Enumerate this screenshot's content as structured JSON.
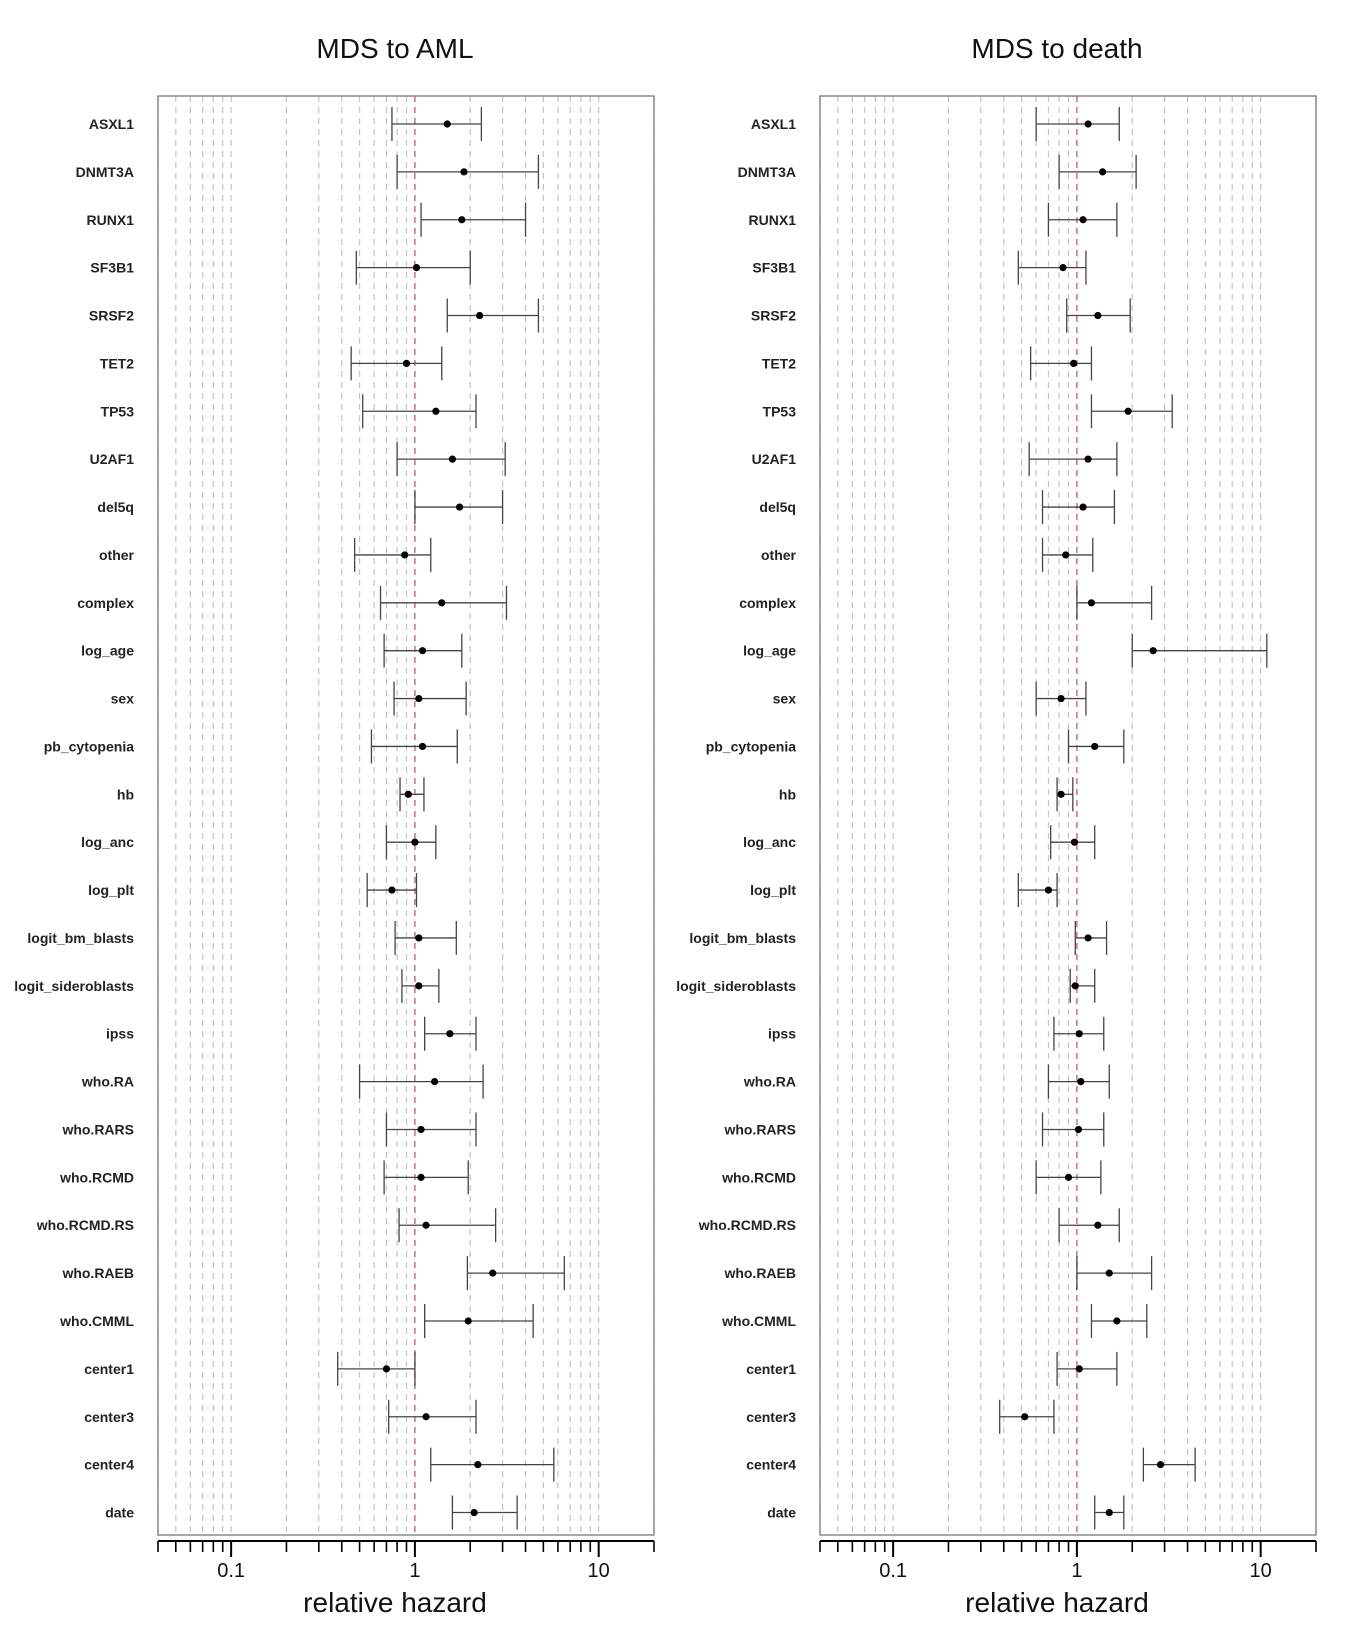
{
  "chart_data": [
    {
      "type": "forest",
      "title": "MDS to AML",
      "xlabel": "relative hazard",
      "xscale": "log",
      "xlim": [
        0.04,
        20
      ],
      "xticks": [
        0.1,
        1,
        10
      ],
      "xtick_labels": [
        "0.1",
        "1",
        "10"
      ],
      "reference_line": 1,
      "grid": "dashed vertical at log minor ticks",
      "variables": [
        "ASXL1",
        "DNMT3A",
        "RUNX1",
        "SF3B1",
        "SRSF2",
        "TET2",
        "TP53",
        "U2AF1",
        "del5q",
        "other",
        "complex",
        "log_age",
        "sex",
        "pb_cytopenia",
        "hb",
        "log_anc",
        "log_plt",
        "logit_bm_blasts",
        "logit_sideroblasts",
        "ipss",
        "who.RA",
        "who.RARS",
        "who.RCMD",
        "who.RCMD.RS",
        "who.RAEB",
        "who.CMML",
        "center1",
        "center3",
        "center4",
        "date"
      ],
      "estimates": [
        1.5,
        1.85,
        1.8,
        1.02,
        2.25,
        0.9,
        1.3,
        1.6,
        1.75,
        0.88,
        1.4,
        1.1,
        1.05,
        1.1,
        0.92,
        1.0,
        0.75,
        1.05,
        1.05,
        1.55,
        1.28,
        1.08,
        1.08,
        1.15,
        2.65,
        1.95,
        0.7,
        1.15,
        2.2,
        2.1
      ],
      "lower": [
        0.75,
        0.8,
        1.08,
        0.48,
        1.5,
        0.45,
        0.52,
        0.8,
        1.0,
        0.47,
        0.65,
        0.68,
        0.77,
        0.58,
        0.83,
        0.7,
        0.55,
        0.78,
        0.85,
        1.13,
        0.5,
        0.7,
        0.68,
        0.82,
        1.93,
        1.13,
        0.38,
        0.72,
        1.22,
        1.6
      ],
      "upper": [
        2.3,
        4.7,
        4.0,
        2.0,
        4.7,
        1.4,
        2.15,
        3.1,
        3.0,
        1.22,
        3.15,
        1.8,
        1.9,
        1.7,
        1.12,
        1.3,
        1.02,
        1.68,
        1.35,
        2.15,
        2.35,
        2.15,
        1.95,
        2.75,
        6.5,
        4.4,
        1.0,
        2.15,
        5.7,
        3.6
      ]
    },
    {
      "type": "forest",
      "title": "MDS to death",
      "xlabel": "relative hazard",
      "xscale": "log",
      "xlim": [
        0.04,
        20
      ],
      "xticks": [
        0.1,
        1,
        10
      ],
      "xtick_labels": [
        "0.1",
        "1",
        "10"
      ],
      "reference_line": 1,
      "grid": "dashed vertical at log minor ticks",
      "variables": [
        "ASXL1",
        "DNMT3A",
        "RUNX1",
        "SF3B1",
        "SRSF2",
        "TET2",
        "TP53",
        "U2AF1",
        "del5q",
        "other",
        "complex",
        "log_age",
        "sex",
        "pb_cytopenia",
        "hb",
        "log_anc",
        "log_plt",
        "logit_bm_blasts",
        "logit_sideroblasts",
        "ipss",
        "who.RA",
        "who.RARS",
        "who.RCMD",
        "who.RCMD.RS",
        "who.RAEB",
        "who.CMML",
        "center1",
        "center3",
        "center4",
        "date"
      ],
      "estimates": [
        1.15,
        1.38,
        1.08,
        0.84,
        1.3,
        0.96,
        1.9,
        1.15,
        1.08,
        0.87,
        1.2,
        2.6,
        0.82,
        1.25,
        0.82,
        0.97,
        0.7,
        1.15,
        0.98,
        1.03,
        1.05,
        1.02,
        0.9,
        1.3,
        1.5,
        1.65,
        1.03,
        0.52,
        2.85,
        1.5
      ],
      "lower": [
        0.6,
        0.8,
        0.7,
        0.48,
        0.88,
        0.56,
        1.2,
        0.55,
        0.65,
        0.65,
        1.0,
        2.0,
        0.6,
        0.9,
        0.78,
        0.72,
        0.48,
        0.98,
        0.92,
        0.75,
        0.7,
        0.65,
        0.6,
        0.8,
        1.0,
        1.2,
        0.78,
        0.38,
        2.3,
        1.25
      ],
      "upper": [
        1.7,
        2.1,
        1.65,
        1.12,
        1.95,
        1.2,
        3.3,
        1.65,
        1.6,
        1.22,
        2.55,
        10.8,
        1.12,
        1.8,
        0.95,
        1.25,
        0.78,
        1.45,
        1.25,
        1.4,
        1.5,
        1.4,
        1.35,
        1.7,
        2.55,
        2.4,
        1.65,
        0.75,
        4.4,
        1.8
      ]
    }
  ]
}
